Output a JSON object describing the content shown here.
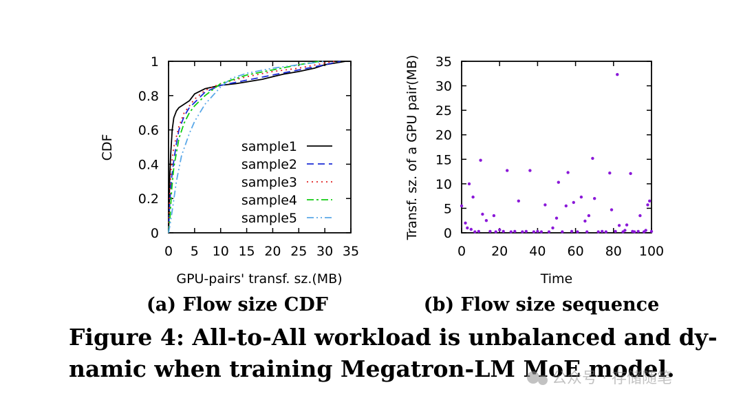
{
  "chart_data": [
    {
      "type": "line",
      "title": "",
      "xlabel": "GPU-pairs' transf. sz.(MB)",
      "ylabel": "CDF",
      "xlim": [
        0,
        35
      ],
      "ylim": [
        0,
        1
      ],
      "xticks": [
        "0",
        "5",
        "10",
        "15",
        "20",
        "25",
        "30",
        "35"
      ],
      "yticks": [
        "0",
        "0.2",
        "0.4",
        "0.6",
        "0.8",
        "1"
      ],
      "legend": "center-right",
      "series": [
        {
          "name": "sample1",
          "color": "#000000",
          "dash": "",
          "points": [
            [
              0,
              0
            ],
            [
              0.1,
              0.1
            ],
            [
              0.2,
              0.3
            ],
            [
              0.4,
              0.45
            ],
            [
              0.7,
              0.6
            ],
            [
              1,
              0.67
            ],
            [
              1.5,
              0.71
            ],
            [
              2,
              0.73
            ],
            [
              3,
              0.75
            ],
            [
              4,
              0.77
            ],
            [
              5,
              0.81
            ],
            [
              7,
              0.84
            ],
            [
              10,
              0.86
            ],
            [
              13,
              0.87
            ],
            [
              15,
              0.88
            ],
            [
              18,
              0.895
            ],
            [
              20,
              0.91
            ],
            [
              22,
              0.925
            ],
            [
              25,
              0.94
            ],
            [
              28,
              0.96
            ],
            [
              30,
              0.98
            ],
            [
              32,
              0.99
            ],
            [
              34,
              1.0
            ]
          ]
        },
        {
          "name": "sample2",
          "color": "#1a2bd6",
          "dash": "10,6",
          "points": [
            [
              0,
              0
            ],
            [
              0.2,
              0.15
            ],
            [
              0.5,
              0.3
            ],
            [
              1,
              0.42
            ],
            [
              1.5,
              0.52
            ],
            [
              2,
              0.6
            ],
            [
              3,
              0.68
            ],
            [
              4,
              0.73
            ],
            [
              5,
              0.76
            ],
            [
              7,
              0.82
            ],
            [
              10,
              0.86
            ],
            [
              15,
              0.89
            ],
            [
              20,
              0.92
            ],
            [
              25,
              0.95
            ],
            [
              30,
              0.98
            ],
            [
              33,
              1.0
            ]
          ]
        },
        {
          "name": "sample3",
          "color": "#e02020",
          "dash": "2,5",
          "points": [
            [
              0,
              0
            ],
            [
              0.2,
              0.2
            ],
            [
              0.5,
              0.38
            ],
            [
              1,
              0.5
            ],
            [
              2,
              0.62
            ],
            [
              3,
              0.7
            ],
            [
              4,
              0.74
            ],
            [
              5,
              0.78
            ],
            [
              7,
              0.83
            ],
            [
              10,
              0.87
            ],
            [
              15,
              0.91
            ],
            [
              20,
              0.94
            ],
            [
              25,
              0.96
            ],
            [
              30,
              0.99
            ],
            [
              32,
              1.0
            ]
          ]
        },
        {
          "name": "sample4",
          "color": "#10cc10",
          "dash": "10,4,3,4",
          "points": [
            [
              0,
              0
            ],
            [
              0.3,
              0.1
            ],
            [
              0.6,
              0.25
            ],
            [
              1,
              0.38
            ],
            [
              2,
              0.55
            ],
            [
              3,
              0.64
            ],
            [
              4,
              0.7
            ],
            [
              5,
              0.74
            ],
            [
              7,
              0.8
            ],
            [
              10,
              0.87
            ],
            [
              15,
              0.92
            ],
            [
              20,
              0.95
            ],
            [
              25,
              0.98
            ],
            [
              29,
              1.0
            ]
          ]
        },
        {
          "name": "sample5",
          "color": "#5aa8e8",
          "dash": "10,4,2,4,2,4",
          "points": [
            [
              0,
              0
            ],
            [
              0.3,
              0.05
            ],
            [
              0.8,
              0.15
            ],
            [
              1.5,
              0.3
            ],
            [
              2.5,
              0.45
            ],
            [
              4,
              0.58
            ],
            [
              5,
              0.65
            ],
            [
              7,
              0.75
            ],
            [
              10,
              0.85
            ],
            [
              12,
              0.9
            ],
            [
              15,
              0.93
            ],
            [
              20,
              0.96
            ],
            [
              25,
              0.98
            ],
            [
              30,
              1.0
            ]
          ]
        }
      ]
    },
    {
      "type": "scatter",
      "title": "",
      "xlabel": "Time",
      "ylabel": "Transf. sz. of a GPU pair(MB)",
      "xlim": [
        0,
        100
      ],
      "ylim": [
        0,
        35
      ],
      "xticks": [
        "0",
        "20",
        "40",
        "60",
        "80",
        "100"
      ],
      "yticks": [
        "0",
        "5",
        "10",
        "15",
        "20",
        "25",
        "30",
        "35"
      ],
      "color": "#8a18d8",
      "points": [
        [
          0,
          5.5
        ],
        [
          2,
          2
        ],
        [
          3,
          1
        ],
        [
          4,
          10
        ],
        [
          5,
          0.7
        ],
        [
          6,
          7.3
        ],
        [
          7,
          0.2
        ],
        [
          9,
          0.3
        ],
        [
          10,
          14.8
        ],
        [
          11,
          3.8
        ],
        [
          13,
          2.5
        ],
        [
          15,
          0.3
        ],
        [
          17,
          3.5
        ],
        [
          18,
          0.2
        ],
        [
          20,
          0.6
        ],
        [
          22,
          0.3
        ],
        [
          24,
          12.7
        ],
        [
          26,
          0.2
        ],
        [
          28,
          0.3
        ],
        [
          30,
          6.5
        ],
        [
          32,
          0.2
        ],
        [
          34,
          0.3
        ],
        [
          36,
          12.7
        ],
        [
          38,
          0.2
        ],
        [
          40,
          0.3
        ],
        [
          42,
          0.2
        ],
        [
          44,
          5.7
        ],
        [
          46,
          0.2
        ],
        [
          48,
          1
        ],
        [
          50,
          3
        ],
        [
          51,
          10.3
        ],
        [
          53,
          0.2
        ],
        [
          55,
          5.5
        ],
        [
          56,
          12.3
        ],
        [
          58,
          0.3
        ],
        [
          59,
          6.2
        ],
        [
          61,
          0.2
        ],
        [
          63,
          7.3
        ],
        [
          65,
          2.4
        ],
        [
          66,
          0.2
        ],
        [
          67,
          3.5
        ],
        [
          69,
          15.2
        ],
        [
          70,
          7
        ],
        [
          72,
          0.2
        ],
        [
          74,
          0.3
        ],
        [
          76,
          0.2
        ],
        [
          78,
          12.2
        ],
        [
          79,
          4.7
        ],
        [
          81,
          0.3
        ],
        [
          82,
          32.3
        ],
        [
          83,
          1.5
        ],
        [
          85,
          0.2
        ],
        [
          86,
          0.5
        ],
        [
          87,
          1.6
        ],
        [
          89,
          12.1
        ],
        [
          90,
          0.3
        ],
        [
          91,
          0.2
        ],
        [
          93,
          0.3
        ],
        [
          94,
          3.5
        ],
        [
          96,
          0.2
        ],
        [
          97,
          0.5
        ],
        [
          98,
          5.7
        ],
        [
          99,
          6.5
        ],
        [
          100,
          0.3
        ]
      ]
    }
  ],
  "subcaptions": {
    "a": "(a) Flow size CDF",
    "b": "(b) Flow size sequence"
  },
  "caption": {
    "line1": "Figure 4: All-to-All workload is unbalanced and dy-",
    "line2": "namic when training Megatron-LM MoE model."
  },
  "watermark": "公众号 · 存储随笔"
}
